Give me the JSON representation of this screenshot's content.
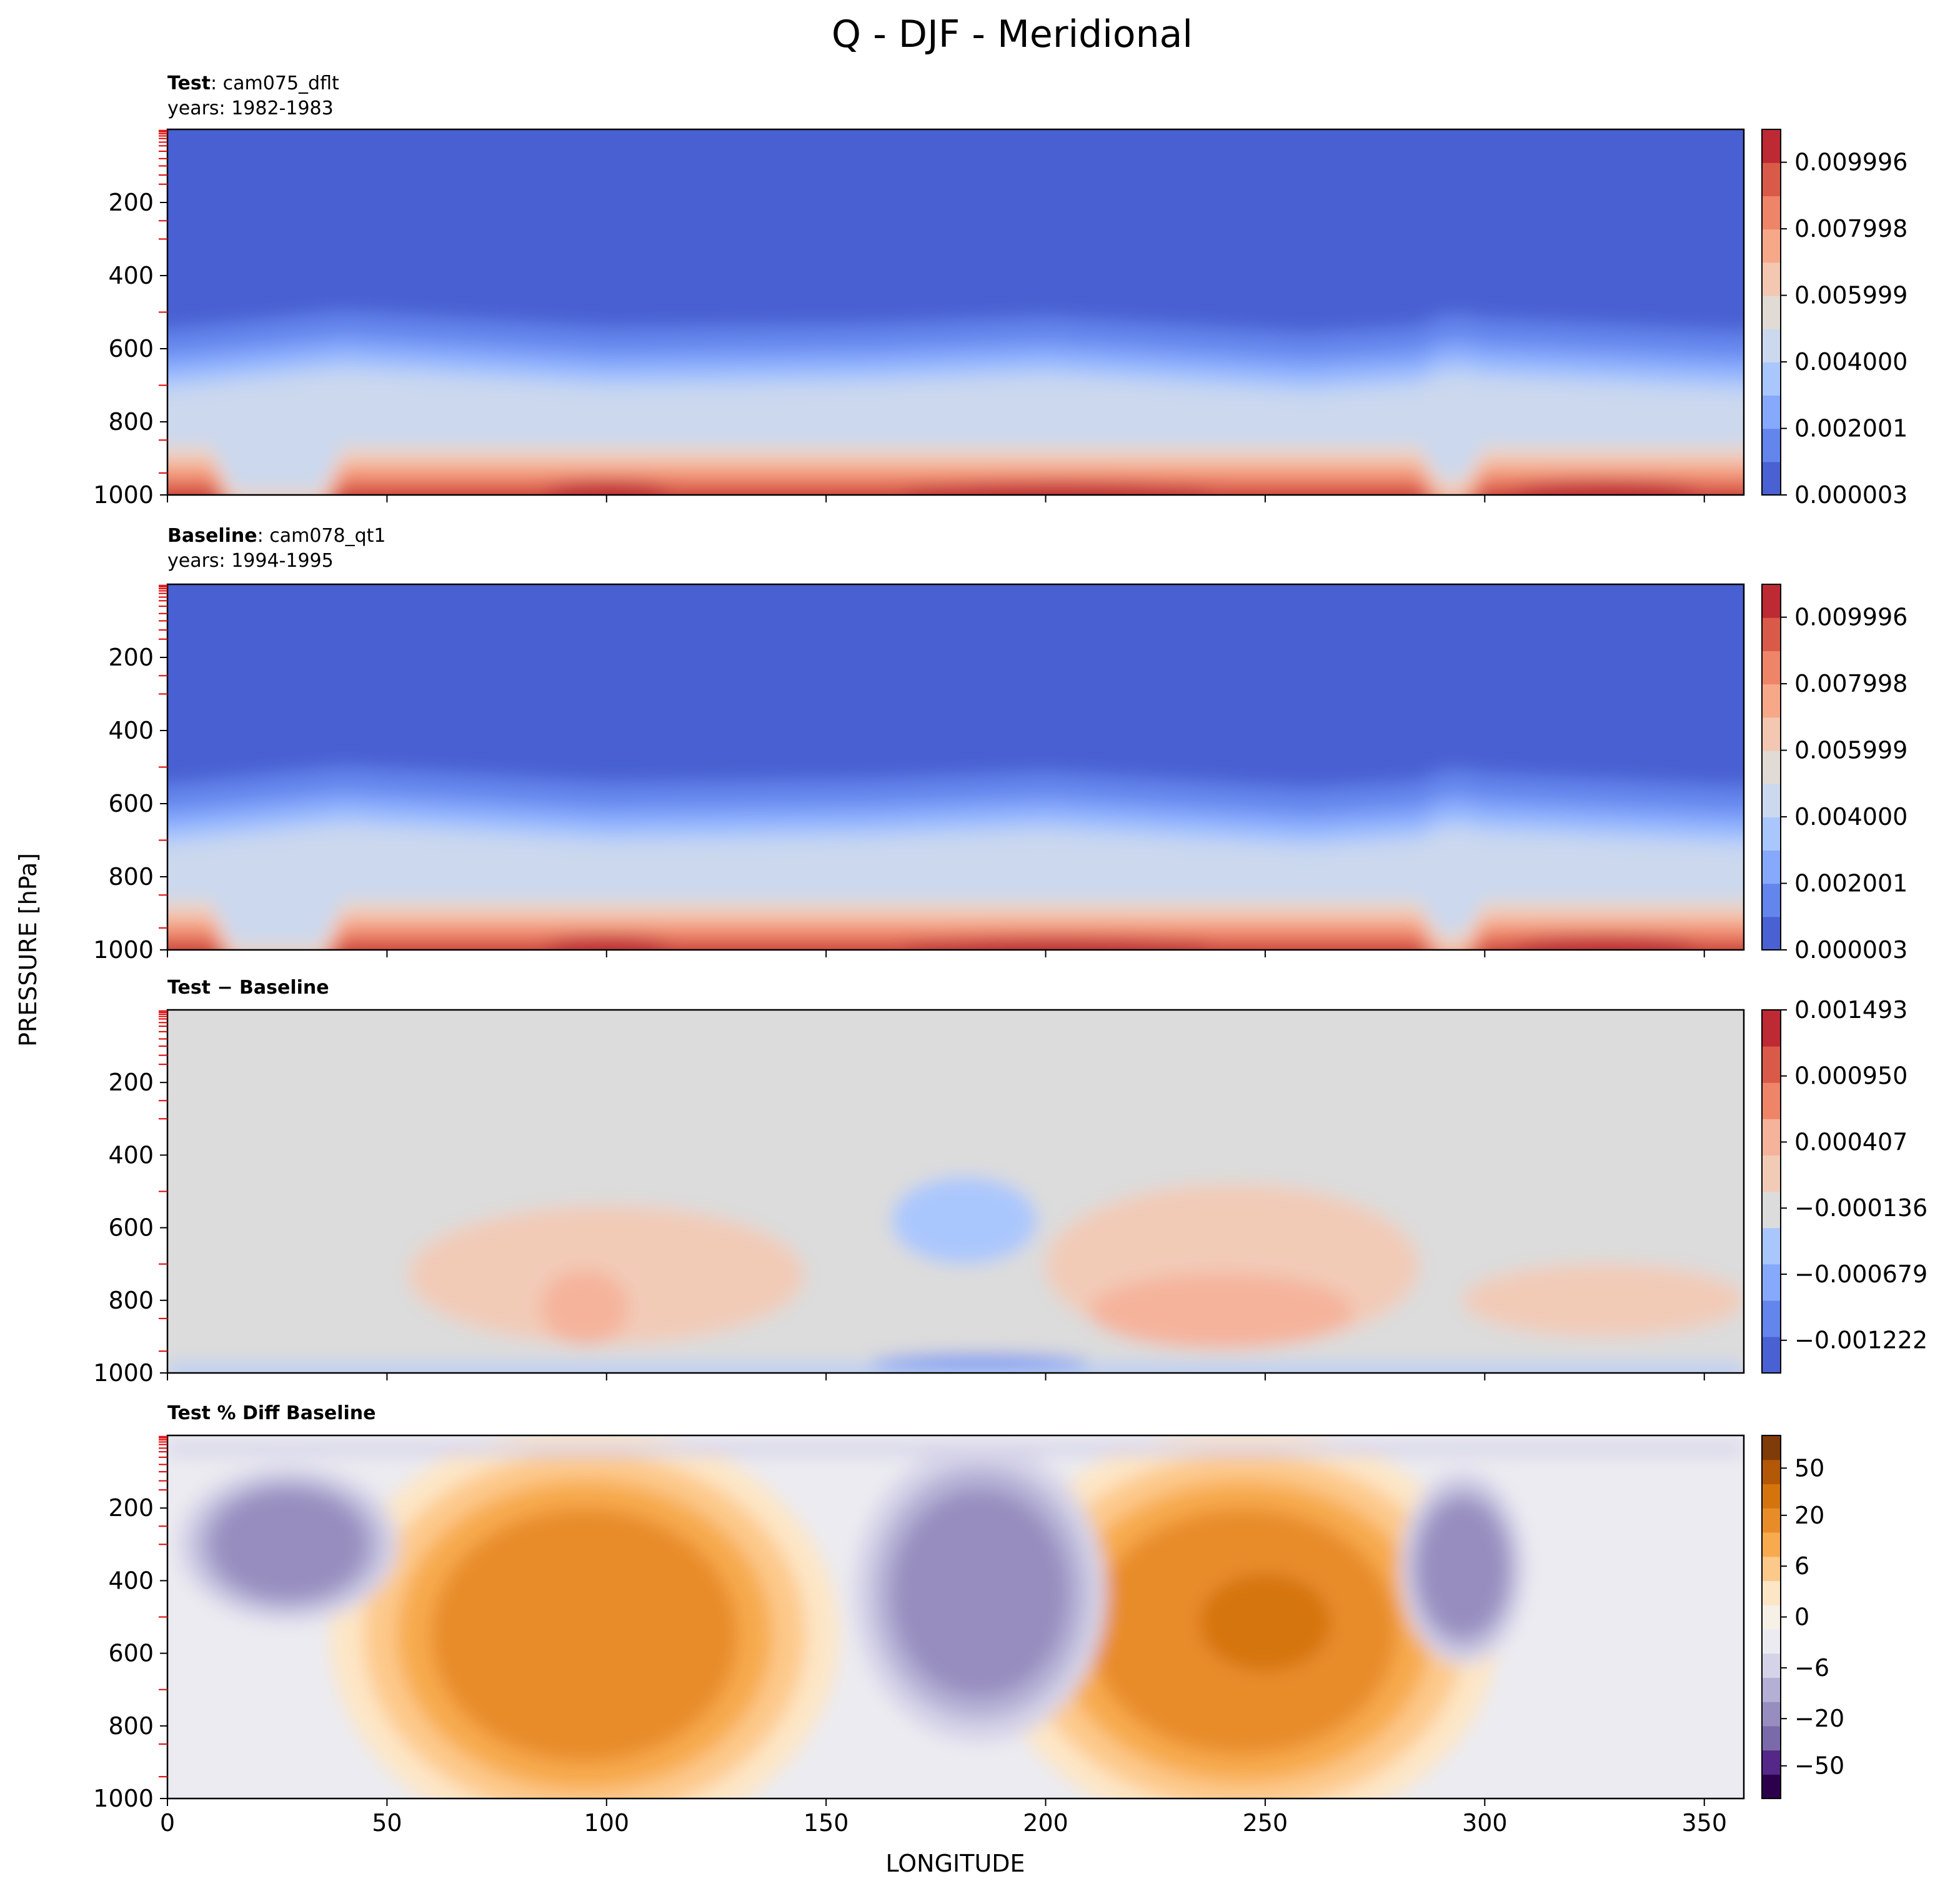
{
  "figure": {
    "title": "Q - DJF - Meridional",
    "xlabel": "LONGITUDE",
    "ylabel": "PRESSURE [hPa]"
  },
  "chart_data": [
    {
      "type": "heatmap",
      "panel": "test",
      "title_bold": "Test",
      "title_rest": ": cam075_dflt",
      "subtitle": "years: 1982-1983",
      "xlim": [
        0,
        359
      ],
      "ylim": [
        1000,
        0
      ],
      "xticks": [],
      "yticks": [
        200,
        400,
        600,
        800,
        1000
      ],
      "colormap": "coolwarm",
      "colorbar_ticks": [
        "0.000003",
        "0.002001",
        "0.004000",
        "0.005999",
        "0.007998",
        "0.009996"
      ],
      "colors": [
        "#4961d2",
        "#6485ec",
        "#86a9fc",
        "#aac7fd",
        "#cbd8ee",
        "#e2dad5",
        "#f3c7b1",
        "#f7a889",
        "#ee8468",
        "#da5a49",
        "#be2a34"
      ],
      "field": "Q",
      "profile": [
        {
          "lon": 0,
          "p_low": 550,
          "p_surface_warm": 920
        },
        {
          "lon": 15,
          "p_low": 520,
          "p_surface_warm": 960
        },
        {
          "lon": 40,
          "p_low": 500,
          "p_surface_warm": 980
        },
        {
          "lon": 100,
          "p_low": 540,
          "p_surface_warm": 880
        },
        {
          "lon": 200,
          "p_low": 510,
          "p_surface_warm": 890
        },
        {
          "lon": 260,
          "p_low": 550,
          "p_surface_warm": 900
        },
        {
          "lon": 290,
          "p_low": 500,
          "p_surface_warm": 960
        },
        {
          "lon": 359,
          "p_low": 550,
          "p_surface_warm": 920
        }
      ]
    },
    {
      "type": "heatmap",
      "panel": "baseline",
      "title_bold": "Baseline",
      "title_rest": ": cam078_qt1",
      "subtitle": "years: 1994-1995",
      "xlim": [
        0,
        359
      ],
      "ylim": [
        1000,
        0
      ],
      "xticks": [],
      "yticks": [
        200,
        400,
        600,
        800,
        1000
      ],
      "colormap": "coolwarm",
      "colorbar_ticks": [
        "0.000003",
        "0.002001",
        "0.004000",
        "0.005999",
        "0.007998",
        "0.009996"
      ],
      "colors": [
        "#4961d2",
        "#6485ec",
        "#86a9fc",
        "#aac7fd",
        "#cbd8ee",
        "#e2dad5",
        "#f3c7b1",
        "#f7a889",
        "#ee8468",
        "#da5a49",
        "#be2a34"
      ],
      "field": "Q"
    },
    {
      "type": "heatmap",
      "panel": "difference",
      "title_bold": "Test − Baseline",
      "xlim": [
        0,
        359
      ],
      "ylim": [
        1000,
        0
      ],
      "xticks": [],
      "yticks": [
        200,
        400,
        600,
        800,
        1000
      ],
      "colormap": "coolwarm",
      "colorbar_ticks": [
        "−0.001222",
        "−0.000679",
        "−0.000136",
        "0.000407",
        "0.000950",
        "0.001493"
      ],
      "colors": [
        "#4961d2",
        "#6485ec",
        "#86a9fc",
        "#aac7fd",
        "#dcdcdc",
        "#f2cbb7",
        "#f5b39b",
        "#ee8468",
        "#da5a49",
        "#be2a34"
      ],
      "features": [
        {
          "kind": "positive",
          "lon": [
            55,
            145
          ],
          "p": [
            540,
            920
          ]
        },
        {
          "kind": "positive",
          "lon": [
            200,
            285
          ],
          "p": [
            480,
            930
          ]
        },
        {
          "kind": "positive",
          "lon": [
            295,
            359
          ],
          "p": [
            700,
            900
          ]
        },
        {
          "kind": "negative",
          "lon": [
            165,
            198
          ],
          "p": [
            460,
            700
          ]
        },
        {
          "kind": "negative_surface",
          "lon": [
            160,
            210
          ],
          "p": [
            950,
            1000
          ]
        }
      ]
    },
    {
      "type": "heatmap",
      "panel": "percent_difference",
      "title_bold": "Test % Diff Baseline",
      "xlim": [
        0,
        359
      ],
      "ylim": [
        1000,
        0
      ],
      "xticks": [
        0,
        50,
        100,
        150,
        200,
        250,
        300,
        350
      ],
      "yticks": [
        200,
        400,
        600,
        800,
        1000
      ],
      "colormap": "PuOr_r",
      "colorbar_ticks": [
        "−50",
        "−20",
        "−6",
        "0",
        "6",
        "20",
        "50"
      ],
      "colorbar_tick_values": [
        -50,
        -20,
        -6,
        0,
        6,
        20,
        50
      ],
      "colors": [
        "#2d004b",
        "#542788",
        "#7b6aaa",
        "#978ebf",
        "#b4b0d5",
        "#d5d3e8",
        "#ebebf1",
        "#f6f0e6",
        "#fde6c6",
        "#fdc98b",
        "#f7aa4e",
        "#e88c2a",
        "#d5740c",
        "#b35806",
        "#7f3b08"
      ],
      "features": [
        {
          "kind": "positive",
          "lon": [
            60,
            130
          ],
          "p": [
            200,
            900
          ],
          "value": 20
        },
        {
          "kind": "positive",
          "lon": [
            210,
            280
          ],
          "p": [
            200,
            880
          ],
          "value": 20
        },
        {
          "kind": "positive_core",
          "lon": [
            235,
            265
          ],
          "p": [
            380,
            650
          ],
          "value": 50
        },
        {
          "kind": "negative",
          "lon": [
            165,
            205
          ],
          "p": [
            150,
            720
          ],
          "value": -20
        },
        {
          "kind": "negative",
          "lon": [
            10,
            45
          ],
          "p": [
            150,
            450
          ],
          "value": -20
        },
        {
          "kind": "negative",
          "lon": [
            285,
            305
          ],
          "p": [
            180,
            550
          ],
          "value": -20
        }
      ]
    }
  ]
}
